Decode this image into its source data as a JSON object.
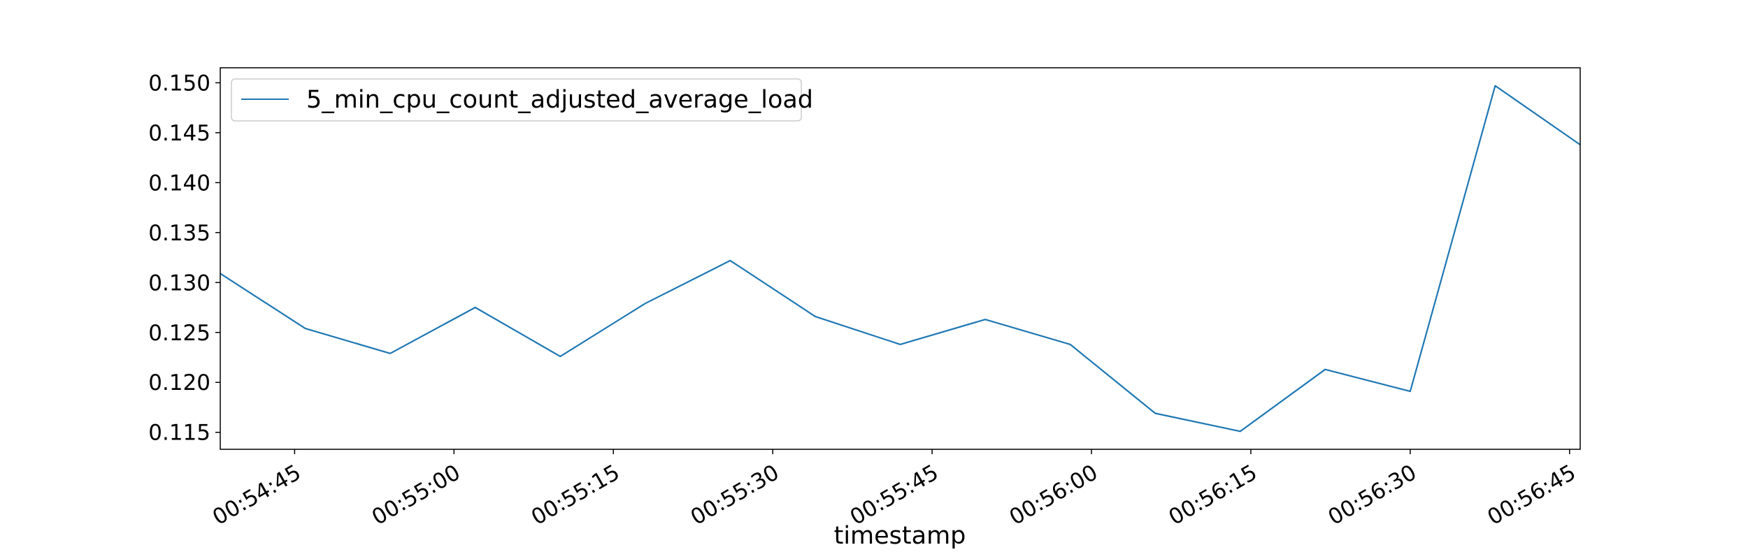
{
  "chart_data": {
    "type": "line",
    "title": "",
    "xlabel": "timestamp",
    "ylabel": "",
    "x_ticks": [
      "00:54:45",
      "00:55:00",
      "00:55:15",
      "00:55:30",
      "00:55:45",
      "00:56:00",
      "00:56:15",
      "00:56:30",
      "00:56:45"
    ],
    "y_ticks": [
      "0.115",
      "0.120",
      "0.125",
      "0.130",
      "0.135",
      "0.140",
      "0.145",
      "0.150"
    ],
    "x_range": [
      "00:54:38",
      "00:56:46"
    ],
    "ylim": [
      0.1133,
      0.1515
    ],
    "legend": "top-left",
    "grid": false,
    "series": [
      {
        "name": "5_min_cpu_count_adjusted_average_load",
        "color": "#1f77b4",
        "x": [
          "00:54:38",
          "00:54:46",
          "00:54:54",
          "00:55:02",
          "00:55:10",
          "00:55:18",
          "00:55:26",
          "00:55:34",
          "00:55:42",
          "00:55:50",
          "00:55:58",
          "00:56:06",
          "00:56:14",
          "00:56:22",
          "00:56:30",
          "00:56:38",
          "00:56:46"
        ],
        "values": [
          0.1309,
          0.1254,
          0.1229,
          0.1275,
          0.1226,
          0.1279,
          0.1322,
          0.1266,
          0.1238,
          0.1263,
          0.1238,
          0.1169,
          0.1151,
          0.1213,
          0.1191,
          0.1497,
          0.1438
        ]
      }
    ]
  }
}
